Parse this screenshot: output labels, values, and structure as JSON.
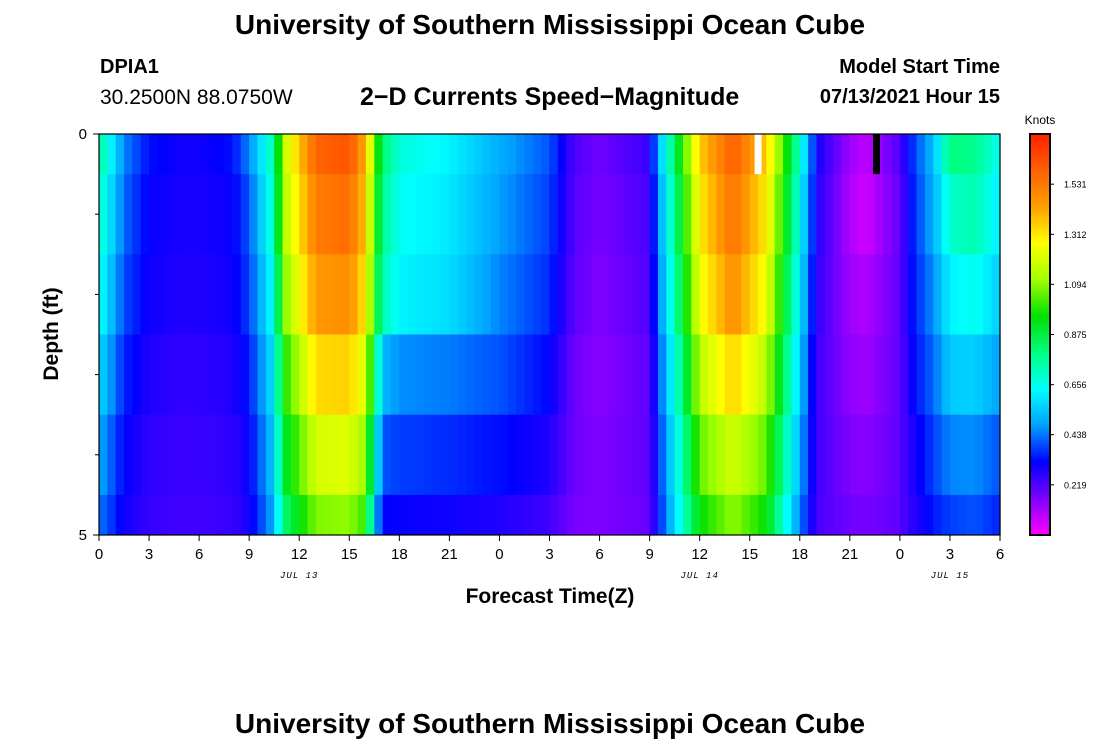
{
  "header": {
    "title": "University of Southern Mississippi Ocean Cube",
    "station": "DPIA1",
    "coords": "30.2500N  88.0750W",
    "subtitle": "2−D Currents Speed−Magnitude",
    "model_start_label": "Model Start Time",
    "model_start_value": "07/13/2021 Hour 15"
  },
  "footer": {
    "title": "University of Southern Mississippi Ocean Cube"
  },
  "chart_data": {
    "type": "heatmap",
    "title": "2−D Currents Speed−Magnitude",
    "xlabel": "Forecast Time(Z)",
    "ylabel": "Depth (ft)",
    "x_range_hours": [
      0,
      54
    ],
    "x_tick_labels": [
      "0",
      "3",
      "6",
      "9",
      "12",
      "15",
      "18",
      "21",
      "0",
      "3",
      "6",
      "9",
      "12",
      "15",
      "18",
      "21",
      "0",
      "3",
      "6"
    ],
    "date_labels": [
      {
        "text": "JUL 13",
        "hour": 12
      },
      {
        "text": "JUL 14",
        "hour": 36
      },
      {
        "text": "JUL 15",
        "hour": 51
      }
    ],
    "y_range_ft": [
      0,
      5
    ],
    "y_tick_labels": [
      {
        "depth": 0,
        "text": "0"
      },
      {
        "depth": 5,
        "text": "5"
      }
    ],
    "y_minor_ticks": [
      1,
      2,
      3,
      4
    ],
    "depth_levels_ft": [
      0.25,
      1,
      2,
      3,
      4,
      4.75
    ],
    "speed_anchor_hours": [
      0,
      1.5,
      3,
      5,
      6,
      8,
      9,
      10.5,
      11,
      13,
      15,
      16,
      16.5,
      17,
      18,
      21,
      24,
      27,
      28.5,
      30,
      33,
      33.5,
      35,
      36,
      38,
      40,
      42,
      43,
      45,
      46,
      48,
      48.5,
      49,
      50,
      51,
      52.5,
      54
    ],
    "speed_knots": [
      [
        0.78,
        0.45,
        0.33,
        0.3,
        0.3,
        0.33,
        0.45,
        0.75,
        1.15,
        1.58,
        1.62,
        1.4,
        1.05,
        0.82,
        0.68,
        0.62,
        0.5,
        0.4,
        0.22,
        0.18,
        0.25,
        0.5,
        1.0,
        1.35,
        1.6,
        1.35,
        0.7,
        0.3,
        0.12,
        0.08,
        0.22,
        0.32,
        0.4,
        0.52,
        0.8,
        0.78,
        0.65
      ],
      [
        0.72,
        0.42,
        0.31,
        0.29,
        0.29,
        0.31,
        0.4,
        0.72,
        1.12,
        1.52,
        1.56,
        1.36,
        1.0,
        0.78,
        0.65,
        0.6,
        0.48,
        0.38,
        0.21,
        0.17,
        0.23,
        0.45,
        0.95,
        1.3,
        1.55,
        1.3,
        0.65,
        0.28,
        0.1,
        0.06,
        0.2,
        0.3,
        0.38,
        0.5,
        0.7,
        0.74,
        0.6
      ],
      [
        0.66,
        0.39,
        0.3,
        0.28,
        0.28,
        0.3,
        0.38,
        0.66,
        1.06,
        1.45,
        1.48,
        1.3,
        0.95,
        0.74,
        0.62,
        0.58,
        0.45,
        0.36,
        0.2,
        0.16,
        0.22,
        0.42,
        0.9,
        1.25,
        1.48,
        1.25,
        0.6,
        0.26,
        0.12,
        0.1,
        0.2,
        0.3,
        0.36,
        0.46,
        0.62,
        0.66,
        0.55
      ],
      [
        0.58,
        0.35,
        0.28,
        0.26,
        0.26,
        0.28,
        0.34,
        0.6,
        0.96,
        1.33,
        1.35,
        1.2,
        0.85,
        0.52,
        0.46,
        0.44,
        0.4,
        0.32,
        0.18,
        0.15,
        0.2,
        0.38,
        0.82,
        1.15,
        1.35,
        1.15,
        0.55,
        0.24,
        0.14,
        0.12,
        0.2,
        0.28,
        0.34,
        0.42,
        0.55,
        0.56,
        0.48
      ],
      [
        0.5,
        0.32,
        0.26,
        0.25,
        0.25,
        0.26,
        0.31,
        0.55,
        0.88,
        1.2,
        1.22,
        1.1,
        0.7,
        0.4,
        0.38,
        0.36,
        0.33,
        0.28,
        0.18,
        0.16,
        0.2,
        0.35,
        0.75,
        1.05,
        1.2,
        1.05,
        0.5,
        0.24,
        0.16,
        0.15,
        0.2,
        0.26,
        0.3,
        0.38,
        0.45,
        0.46,
        0.4
      ],
      [
        0.44,
        0.3,
        0.25,
        0.24,
        0.24,
        0.25,
        0.29,
        0.5,
        0.8,
        1.08,
        1.1,
        1.0,
        0.55,
        0.32,
        0.31,
        0.3,
        0.28,
        0.24,
        0.17,
        0.16,
        0.19,
        0.33,
        0.7,
        0.95,
        1.1,
        0.95,
        0.45,
        0.23,
        0.18,
        0.17,
        0.2,
        0.25,
        0.28,
        0.34,
        0.38,
        0.4,
        0.35
      ]
    ],
    "markers": [
      {
        "hour": 39.5,
        "color": "#ffffff",
        "depth_top": 0,
        "depth_bottom": 0.5
      },
      {
        "hour": 46.6,
        "color": "#000000",
        "depth_top": 0,
        "depth_bottom": 0.5
      }
    ],
    "colorbar": {
      "title": "Knots",
      "range": [
        0,
        1.75
      ],
      "tick_values": [
        0.219,
        0.438,
        0.656,
        0.875,
        1.094,
        1.312,
        1.531
      ],
      "tick_labels": [
        "0.219",
        "0.438",
        "0.656",
        "0.875",
        "1.094",
        "1.312",
        "1.531"
      ],
      "colors": [
        "#ff00ff",
        "#8000ff",
        "#0000ff",
        "#00a0ff",
        "#00ffff",
        "#00ff80",
        "#00e000",
        "#a0ff00",
        "#ffff00",
        "#ffa000",
        "#ff6000",
        "#ff2000"
      ]
    }
  }
}
